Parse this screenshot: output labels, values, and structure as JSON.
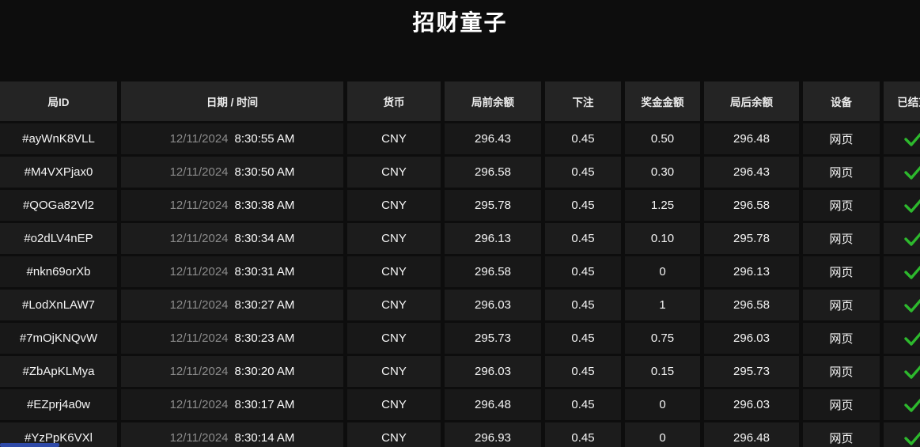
{
  "title": "招财童子",
  "table": {
    "columns": [
      {
        "key": "id",
        "label": "局ID"
      },
      {
        "key": "datetime",
        "label": "日期 / 时间"
      },
      {
        "key": "currency",
        "label": "货币"
      },
      {
        "key": "balance_before",
        "label": "局前余额"
      },
      {
        "key": "bet",
        "label": "下注"
      },
      {
        "key": "win",
        "label": "奖金金额"
      },
      {
        "key": "balance_after",
        "label": "局后余额"
      },
      {
        "key": "device",
        "label": "设备"
      },
      {
        "key": "settled",
        "label": "已结束"
      }
    ],
    "rows": [
      {
        "id": "#ayWnK8VLL",
        "date": "12/11/2024",
        "time": "8:30:55 AM",
        "currency": "CNY",
        "balance_before": "296.43",
        "bet": "0.45",
        "win": "0.50",
        "balance_after": "296.48",
        "device": "网页",
        "settled": true
      },
      {
        "id": "#M4VXPjax0",
        "date": "12/11/2024",
        "time": "8:30:50 AM",
        "currency": "CNY",
        "balance_before": "296.58",
        "bet": "0.45",
        "win": "0.30",
        "balance_after": "296.43",
        "device": "网页",
        "settled": true
      },
      {
        "id": "#QOGa82Vl2",
        "date": "12/11/2024",
        "time": "8:30:38 AM",
        "currency": "CNY",
        "balance_before": "295.78",
        "bet": "0.45",
        "win": "1.25",
        "balance_after": "296.58",
        "device": "网页",
        "settled": true
      },
      {
        "id": "#o2dLV4nEP",
        "date": "12/11/2024",
        "time": "8:30:34 AM",
        "currency": "CNY",
        "balance_before": "296.13",
        "bet": "0.45",
        "win": "0.10",
        "balance_after": "295.78",
        "device": "网页",
        "settled": true
      },
      {
        "id": "#nkn69orXb",
        "date": "12/11/2024",
        "time": "8:30:31 AM",
        "currency": "CNY",
        "balance_before": "296.58",
        "bet": "0.45",
        "win": "0",
        "balance_after": "296.13",
        "device": "网页",
        "settled": true
      },
      {
        "id": "#LodXnLAW7",
        "date": "12/11/2024",
        "time": "8:30:27 AM",
        "currency": "CNY",
        "balance_before": "296.03",
        "bet": "0.45",
        "win": "1",
        "balance_after": "296.58",
        "device": "网页",
        "settled": true
      },
      {
        "id": "#7mOjKNQvW",
        "date": "12/11/2024",
        "time": "8:30:23 AM",
        "currency": "CNY",
        "balance_before": "295.73",
        "bet": "0.45",
        "win": "0.75",
        "balance_after": "296.03",
        "device": "网页",
        "settled": true
      },
      {
        "id": "#ZbApKLMya",
        "date": "12/11/2024",
        "time": "8:30:20 AM",
        "currency": "CNY",
        "balance_before": "296.03",
        "bet": "0.45",
        "win": "0.15",
        "balance_after": "295.73",
        "device": "网页",
        "settled": true
      },
      {
        "id": "#EZprj4a0w",
        "date": "12/11/2024",
        "time": "8:30:17 AM",
        "currency": "CNY",
        "balance_before": "296.48",
        "bet": "0.45",
        "win": "0",
        "balance_after": "296.03",
        "device": "网页",
        "settled": true
      },
      {
        "id": "#YzPpK6VXl",
        "date": "12/11/2024",
        "time": "8:30:14 AM",
        "currency": "CNY",
        "balance_before": "296.93",
        "bet": "0.45",
        "win": "0",
        "balance_after": "296.48",
        "device": "网页",
        "settled": true
      }
    ]
  },
  "colors": {
    "check_green": "#2db92d",
    "scrollbar_blue": "#2f4aa8"
  }
}
